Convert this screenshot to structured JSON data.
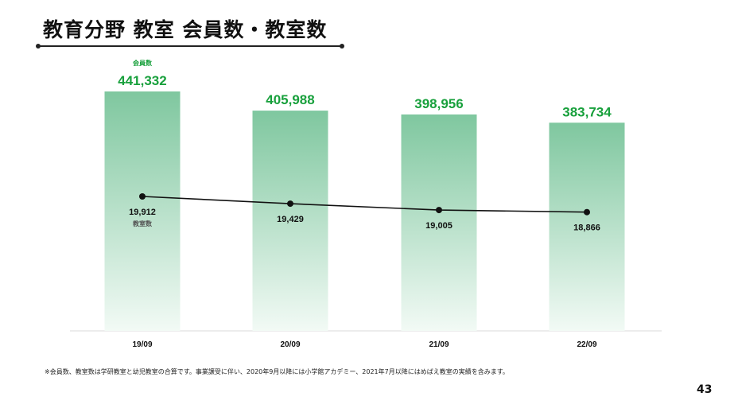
{
  "title": "教育分野 教室 会員数・教室数",
  "footnote": "※会員数、教室数は学研教室と幼児教室の合算です。事業譲受に伴い、2020年9月以降には小学館アカデミー、2021年7月以降にはめばえ教室の実績を含みます。",
  "page_number": "43",
  "colors": {
    "bar_top": "#7fc79f",
    "bar_bottom": "#f2faf5",
    "member_label": "#18a03c",
    "line": "#111111"
  },
  "chart_data": {
    "type": "bar",
    "categories": [
      "19/09",
      "20/09",
      "21/09",
      "22/09"
    ],
    "series": [
      {
        "name": "会員数",
        "type": "bar",
        "values": [
          441332,
          405988,
          398956,
          383734
        ],
        "labels": [
          "441,332",
          "405,988",
          "398,956",
          "383,734"
        ]
      },
      {
        "name": "教室数",
        "type": "line",
        "values": [
          19912,
          19429,
          19005,
          18866
        ],
        "labels": [
          "19,912",
          "19,429",
          "19,005",
          "18,866"
        ]
      }
    ],
    "legend": "inline labels on first category"
  }
}
